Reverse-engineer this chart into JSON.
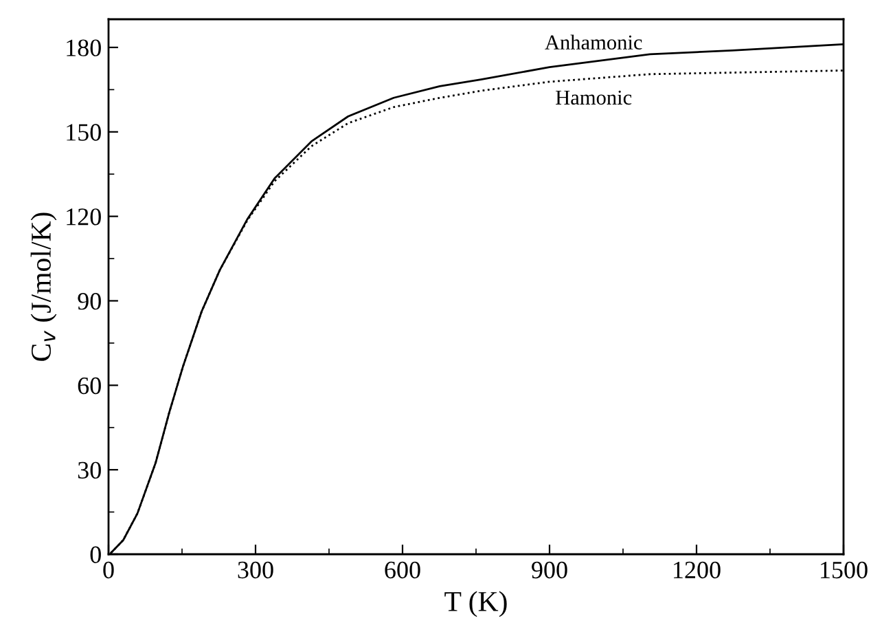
{
  "chart_data": {
    "type": "line",
    "xlabel": "T (K)",
    "ylabel": "C$_{v}$ (J/mol/K)",
    "xlim": [
      0,
      1500
    ],
    "ylim": [
      0,
      190
    ],
    "xticks": [
      0,
      {
        "value": 150,
        "label": null
      },
      300,
      {
        "value": 450,
        "label": null
      },
      600,
      {
        "value": 750,
        "label": null
      },
      900,
      {
        "value": 1050,
        "label": null
      },
      1200,
      {
        "value": 1350,
        "label": null
      },
      1500
    ],
    "yticks": [
      0,
      {
        "value": 15,
        "label": null
      },
      30,
      {
        "value": 45,
        "label": null
      },
      60,
      {
        "value": 75,
        "label": null
      },
      90,
      {
        "value": 105,
        "label": null
      },
      120,
      {
        "value": 135,
        "label": null
      },
      150,
      {
        "value": 165,
        "label": null
      },
      180
    ],
    "grid": false,
    "legend": false,
    "series": [
      {
        "name": "Anhamonic",
        "color": "#000000",
        "line_style": "solid",
        "x": [
          5,
          30,
          59,
          96,
          124,
          152,
          190,
          227,
          283,
          339,
          414,
          489,
          582,
          676,
          760,
          900,
          1105,
          1273,
          1500
        ],
        "values": [
          0.5,
          5,
          14.5,
          32.4,
          50.4,
          66.7,
          86.2,
          100.9,
          118.9,
          133.5,
          146.6,
          155.5,
          162.1,
          166.2,
          168.6,
          173.0,
          177.6,
          178.9,
          181.1
        ]
      },
      {
        "name": "Hamonic",
        "color": "#000000",
        "line_style": "dotted",
        "x": [
          5,
          30,
          59,
          96,
          124,
          152,
          190,
          227,
          283,
          339,
          414,
          489,
          582,
          676,
          760,
          900,
          1105,
          1500
        ],
        "values": [
          0.5,
          5,
          14.5,
          32.4,
          50.4,
          66.7,
          86.2,
          100.9,
          118.5,
          132.5,
          144.9,
          153.1,
          158.8,
          162.1,
          164.6,
          167.8,
          170.5,
          171.8
        ]
      }
    ]
  }
}
